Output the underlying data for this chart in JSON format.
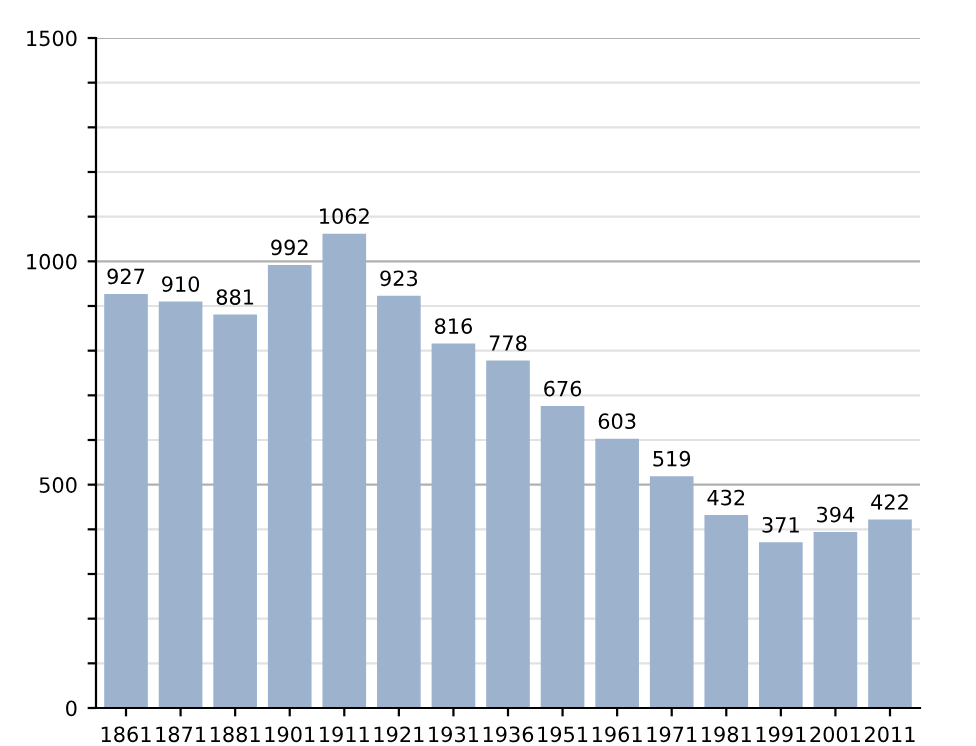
{
  "chart_data": {
    "type": "bar",
    "categories": [
      "1861",
      "1871",
      "1881",
      "1901",
      "1911",
      "1921",
      "1931",
      "1936",
      "1951",
      "1961",
      "1971",
      "1981",
      "1991",
      "2001",
      "2011"
    ],
    "values": [
      927,
      910,
      881,
      992,
      1062,
      923,
      816,
      778,
      676,
      603,
      519,
      432,
      371,
      394,
      422
    ],
    "color": "#9db3cd",
    "ylim": [
      0,
      1500
    ],
    "yticks": [
      0,
      {
        "value": 100,
        "label": null
      },
      {
        "value": 200,
        "label": null
      },
      {
        "value": 300,
        "label": null
      },
      {
        "value": 400,
        "label": null
      },
      500,
      {
        "value": 600,
        "label": null
      },
      {
        "value": 700,
        "label": null
      },
      {
        "value": 800,
        "label": null
      },
      {
        "value": 900,
        "label": null
      },
      1000,
      {
        "value": 1100,
        "label": null
      },
      {
        "value": 1200,
        "label": null
      },
      {
        "value": 1300,
        "label": null
      },
      {
        "value": 1400,
        "label": null
      },
      1500
    ],
    "grid": "y",
    "data_labels": true
  }
}
